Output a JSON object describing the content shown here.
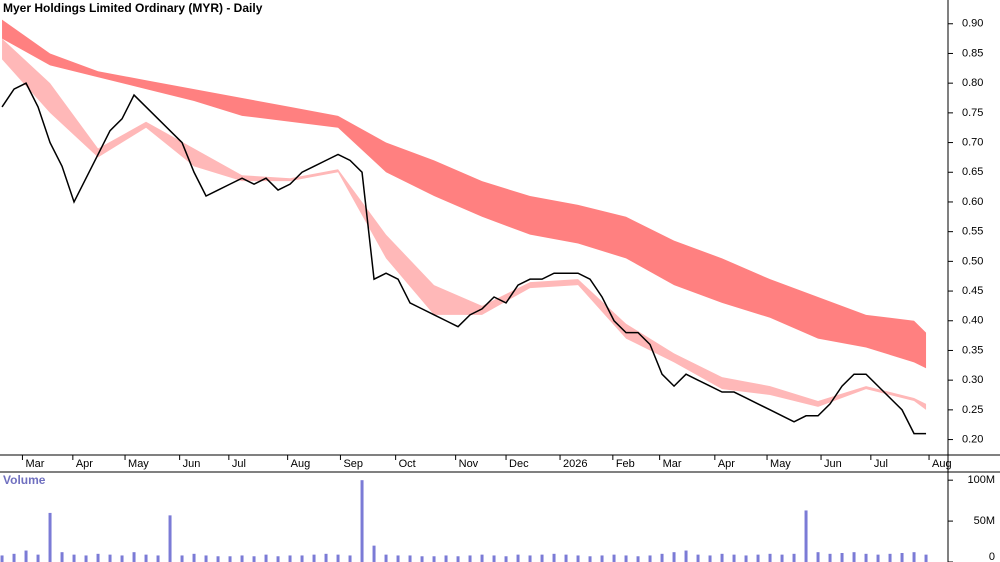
{
  "chart_data": [
    {
      "type": "line",
      "title": "Myer Holdings Limited Ordinary (MYR) - Daily",
      "color": "#000000",
      "x": [
        0,
        1,
        2,
        3,
        4,
        5,
        6,
        7,
        8,
        9,
        10,
        11,
        12,
        13,
        14,
        15,
        16,
        17,
        18,
        19,
        20,
        21,
        22,
        23,
        24,
        25,
        26,
        27,
        28,
        29,
        30,
        31,
        32,
        33,
        34,
        35,
        36,
        37,
        38,
        39,
        40,
        41,
        42,
        43,
        44,
        45,
        46,
        47,
        48,
        49,
        50,
        51,
        52,
        53,
        54,
        55,
        56,
        57,
        58,
        59,
        60,
        61,
        62,
        63,
        64,
        65,
        66,
        67,
        68,
        69,
        70,
        71,
        72,
        73,
        74,
        75,
        76,
        77
      ],
      "values": [
        0.76,
        0.79,
        0.8,
        0.76,
        0.7,
        0.66,
        0.6,
        0.64,
        0.68,
        0.72,
        0.74,
        0.78,
        0.76,
        0.74,
        0.72,
        0.7,
        0.65,
        0.61,
        0.62,
        0.63,
        0.64,
        0.63,
        0.64,
        0.62,
        0.63,
        0.65,
        0.66,
        0.67,
        0.68,
        0.67,
        0.65,
        0.47,
        0.48,
        0.47,
        0.43,
        0.42,
        0.41,
        0.4,
        0.39,
        0.41,
        0.42,
        0.44,
        0.43,
        0.46,
        0.47,
        0.47,
        0.48,
        0.48,
        0.48,
        0.47,
        0.44,
        0.4,
        0.38,
        0.38,
        0.36,
        0.31,
        0.29,
        0.31,
        0.3,
        0.29,
        0.28,
        0.28,
        0.27,
        0.26,
        0.25,
        0.24,
        0.23,
        0.24,
        0.24,
        0.26,
        0.29,
        0.31,
        0.31,
        0.29,
        0.27,
        0.25,
        0.21,
        0.21
      ],
      "bands": [
        {
          "color": "#ff8080",
          "x": [
            0,
            4,
            8,
            12,
            16,
            20,
            24,
            28,
            32,
            36,
            40,
            44,
            48,
            52,
            56,
            60,
            64,
            68,
            72,
            76,
            77
          ],
          "upper": [
            0.907,
            0.85,
            0.82,
            0.805,
            0.79,
            0.775,
            0.76,
            0.745,
            0.7,
            0.67,
            0.635,
            0.61,
            0.595,
            0.575,
            0.535,
            0.505,
            0.47,
            0.44,
            0.41,
            0.4,
            0.38
          ],
          "lower": [
            0.875,
            0.83,
            0.81,
            0.79,
            0.77,
            0.745,
            0.735,
            0.725,
            0.65,
            0.61,
            0.575,
            0.545,
            0.53,
            0.505,
            0.46,
            0.43,
            0.405,
            0.37,
            0.355,
            0.33,
            0.32
          ]
        },
        {
          "color": "#ffb8b8",
          "x": [
            0,
            4,
            8,
            12,
            16,
            20,
            24,
            28,
            32,
            36,
            40,
            44,
            48,
            52,
            56,
            60,
            64,
            68,
            72,
            76,
            77
          ],
          "upper": [
            0.875,
            0.8,
            0.69,
            0.735,
            0.69,
            0.645,
            0.64,
            0.655,
            0.545,
            0.46,
            0.425,
            0.465,
            0.47,
            0.395,
            0.345,
            0.305,
            0.29,
            0.265,
            0.29,
            0.27,
            0.26
          ],
          "lower": [
            0.84,
            0.75,
            0.675,
            0.725,
            0.66,
            0.635,
            0.635,
            0.65,
            0.505,
            0.41,
            0.41,
            0.455,
            0.46,
            0.37,
            0.33,
            0.285,
            0.275,
            0.255,
            0.285,
            0.265,
            0.25
          ]
        }
      ],
      "xlim": [
        -0.17,
        78.83
      ],
      "xticks": [
        {
          "value": 1.7,
          "label": "Mar"
        },
        {
          "value": 5.9,
          "label": "Apr"
        },
        {
          "value": 10.25,
          "label": "May"
        },
        {
          "value": 14.8,
          "label": "Jun"
        },
        {
          "value": 18.9,
          "label": "Jul"
        },
        {
          "value": 23.8,
          "label": "Aug"
        },
        {
          "value": 28.2,
          "label": "Sep"
        },
        {
          "value": 32.8,
          "label": "Oct"
        },
        {
          "value": 37.8,
          "label": "Nov"
        },
        {
          "value": 42,
          "label": "Dec"
        },
        {
          "value": 46.5,
          "label": "2026"
        },
        {
          "value": 50.9,
          "label": "Feb"
        },
        {
          "value": 54.8,
          "label": "Mar"
        },
        {
          "value": 59.4,
          "label": "Apr"
        },
        {
          "value": 63.75,
          "label": "May"
        },
        {
          "value": 68.25,
          "label": "Jun"
        },
        {
          "value": 72.4,
          "label": "Jul"
        },
        {
          "value": 77.25,
          "label": "Aug"
        }
      ],
      "ylim": [
        0.174,
        0.94
      ],
      "yticks": [
        {
          "value": 0.2,
          "label": "0.20"
        },
        0.25,
        {
          "value": 0.3,
          "label": "0.30"
        },
        0.35,
        {
          "value": 0.4,
          "label": "0.40"
        },
        0.45,
        {
          "value": 0.5,
          "label": "0.50"
        },
        0.55,
        {
          "value": 0.6,
          "label": "0.60"
        },
        0.65,
        {
          "value": 0.7,
          "label": "0.70"
        },
        0.75,
        {
          "value": 0.8,
          "label": "0.80"
        },
        0.85,
        {
          "value": 0.9,
          "label": "0.90"
        }
      ]
    },
    {
      "type": "bar",
      "title": "Volume",
      "color": "#7b7bd6",
      "x": [
        0,
        1,
        2,
        3,
        4,
        5,
        6,
        7,
        8,
        9,
        10,
        11,
        12,
        13,
        14,
        15,
        16,
        17,
        18,
        19,
        20,
        21,
        22,
        23,
        24,
        25,
        26,
        27,
        28,
        29,
        30,
        31,
        32,
        33,
        34,
        35,
        36,
        37,
        38,
        39,
        40,
        41,
        42,
        43,
        44,
        45,
        46,
        47,
        48,
        49,
        50,
        51,
        52,
        53,
        54,
        55,
        56,
        57,
        58,
        59,
        60,
        61,
        62,
        63,
        64,
        65,
        66,
        67,
        68,
        69,
        70,
        71,
        72,
        73,
        74,
        75,
        76,
        77
      ],
      "values": [
        8,
        10,
        14,
        9,
        60,
        12,
        9,
        8,
        10,
        9,
        8,
        12,
        9,
        8,
        57,
        8,
        10,
        8,
        7,
        7,
        8,
        7,
        9,
        7,
        8,
        8,
        9,
        10,
        9,
        8,
        100,
        20,
        9,
        8,
        8,
        7,
        7,
        8,
        7,
        8,
        9,
        8,
        7,
        9,
        8,
        9,
        10,
        9,
        8,
        7,
        8,
        9,
        8,
        7,
        8,
        10,
        12,
        14,
        9,
        8,
        10,
        9,
        8,
        9,
        10,
        9,
        10,
        63,
        12,
        10,
        11,
        12,
        10,
        9,
        10,
        11,
        12,
        9
      ],
      "xlim": [
        -0.17,
        78.83
      ],
      "ylim": [
        0,
        110
      ],
      "yticks": [
        0,
        {
          "value": 50,
          "label": "50M"
        },
        {
          "value": 100,
          "label": "100M"
        }
      ]
    }
  ]
}
